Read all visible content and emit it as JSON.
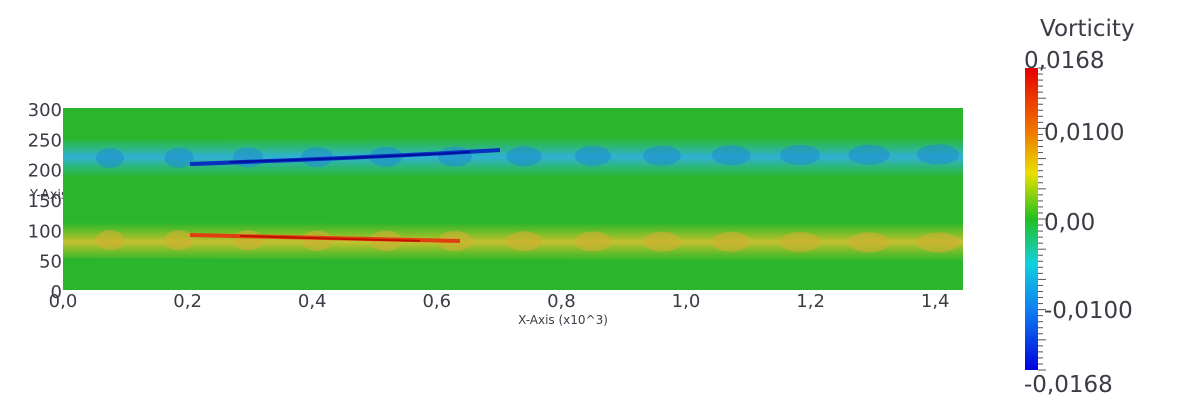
{
  "plot": {
    "x_axis_title": "X-Axis (x10^3)",
    "y_axis_title": "Y-Axis",
    "x_tick_labels": [
      "0,0",
      "0,2",
      "0,4",
      "0,6",
      "0,8",
      "1,0",
      "1,2",
      "1,4"
    ],
    "y_tick_labels": [
      "300",
      "250",
      "200",
      "150",
      "100",
      "50",
      "0"
    ]
  },
  "colorbar": {
    "title": "Vorticity",
    "labels": [
      "0,0168",
      "0,0100",
      "0,00",
      "-0,0100",
      "-0,0168"
    ]
  }
}
